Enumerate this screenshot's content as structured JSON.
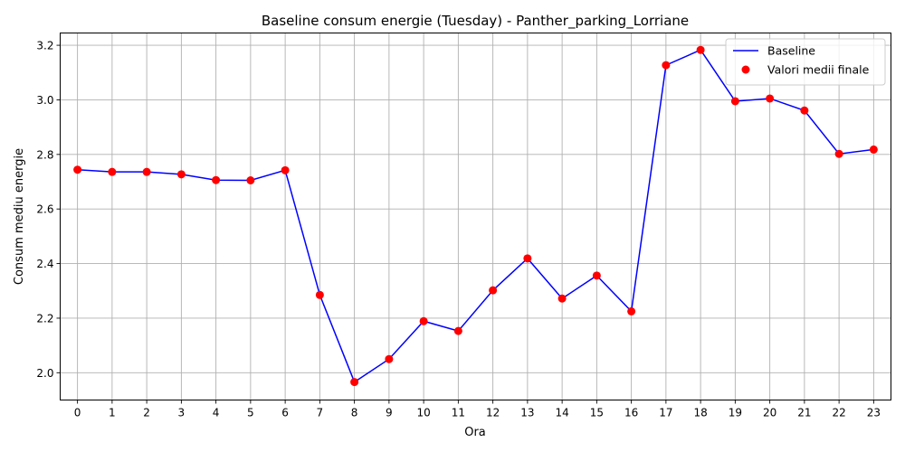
{
  "chart_data": {
    "type": "line",
    "title": "Baseline consum energie (Tuesday) - Panther_parking_Lorriane",
    "xlabel": "Ora",
    "ylabel": "Consum mediu energie",
    "x": [
      0,
      1,
      2,
      3,
      4,
      5,
      6,
      7,
      8,
      9,
      10,
      11,
      12,
      13,
      14,
      15,
      16,
      17,
      18,
      19,
      20,
      21,
      22,
      23
    ],
    "xlim": [
      -0.5,
      23.5
    ],
    "ylim": [
      1.9,
      3.245
    ],
    "yticks": [
      2.0,
      2.2,
      2.4,
      2.6,
      2.8,
      3.0,
      3.2
    ],
    "ytick_labels": [
      "2.0",
      "2.2",
      "2.4",
      "2.6",
      "2.8",
      "3.0",
      "3.2"
    ],
    "grid": true,
    "legend_position": "top-right",
    "series": [
      {
        "name": "Baseline",
        "kind": "line",
        "color": "#0000ff",
        "values": [
          2.744,
          2.736,
          2.736,
          2.727,
          2.706,
          2.705,
          2.742,
          2.285,
          1.966,
          2.05,
          2.189,
          2.153,
          2.302,
          2.419,
          2.272,
          2.356,
          2.225,
          3.127,
          3.183,
          2.995,
          3.005,
          2.961,
          2.802,
          2.818
        ]
      },
      {
        "name": "Valori medii finale",
        "kind": "scatter",
        "color": "#ff0000",
        "values": [
          2.744,
          2.736,
          2.736,
          2.727,
          2.706,
          2.705,
          2.742,
          2.285,
          1.966,
          2.05,
          2.189,
          2.153,
          2.302,
          2.419,
          2.272,
          2.356,
          2.225,
          3.127,
          3.183,
          2.995,
          3.005,
          2.961,
          2.802,
          2.818
        ]
      }
    ]
  }
}
